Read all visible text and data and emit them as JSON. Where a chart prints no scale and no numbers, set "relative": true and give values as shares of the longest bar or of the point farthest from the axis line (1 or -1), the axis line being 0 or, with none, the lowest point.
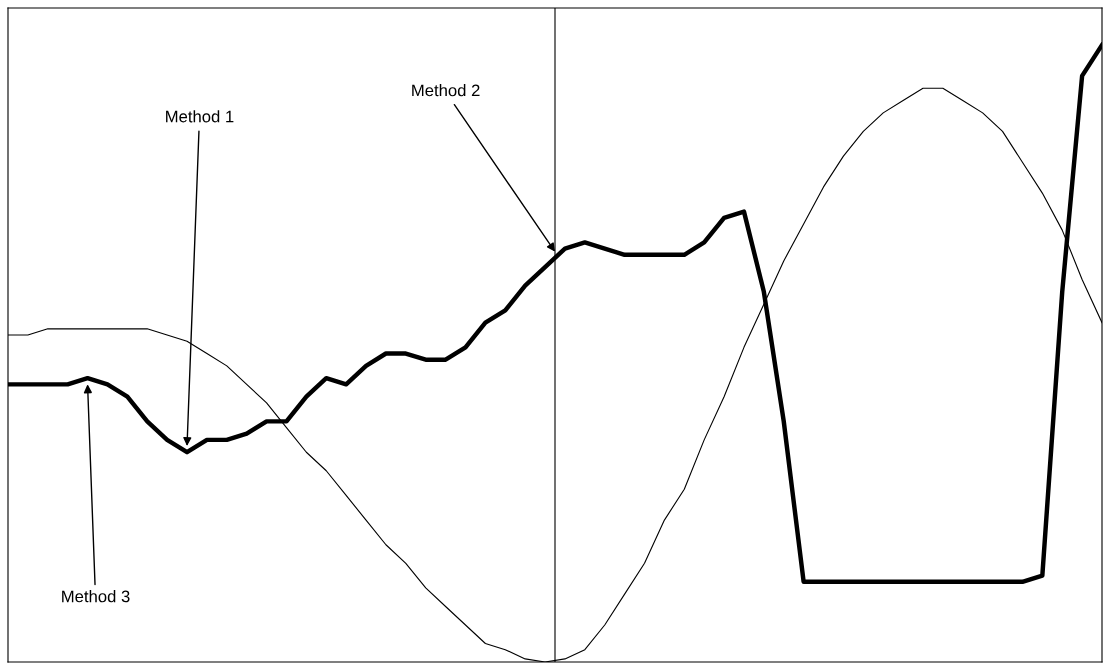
{
  "chart_data": {
    "type": "line",
    "relative": true,
    "categories": [
      null,
      null,
      null,
      null,
      null,
      null,
      null,
      null,
      null,
      null,
      null,
      null,
      null,
      null,
      null,
      null,
      null,
      null,
      null,
      null,
      null,
      null,
      null,
      null,
      null,
      null,
      null,
      null,
      null,
      null,
      null,
      null,
      null,
      null,
      null,
      null,
      null,
      null,
      null,
      null,
      null,
      null,
      null,
      null,
      null,
      null,
      null,
      null,
      null,
      null,
      null,
      null,
      null,
      null,
      null,
      null
    ],
    "series": [
      {
        "color": "#000000",
        "values": [
          0.45,
          0.45,
          0.45,
          0.45,
          0.46,
          0.45,
          0.43,
          0.39,
          0.36,
          0.34,
          0.36,
          0.36,
          0.37,
          0.39,
          0.39,
          0.43,
          0.46,
          0.45,
          0.48,
          0.5,
          0.5,
          0.49,
          0.49,
          0.51,
          0.55,
          0.57,
          0.61,
          0.64,
          0.67,
          0.68,
          0.67,
          0.66,
          0.66,
          0.66,
          0.66,
          0.68,
          0.72,
          0.73,
          0.6,
          0.39,
          0.13,
          0.13,
          0.13,
          0.13,
          0.13,
          0.13,
          0.13,
          0.13,
          0.13,
          0.13,
          0.13,
          0.13,
          0.14,
          0.6,
          0.95,
          1
        ]
      },
      {
        "color": "#000000",
        "values": [
          0.53,
          0.53,
          0.54,
          0.54,
          0.54,
          0.54,
          0.54,
          0.54,
          0.53,
          0.52,
          0.5,
          0.48,
          0.45,
          0.42,
          0.38,
          0.34,
          0.31,
          0.27,
          0.23,
          0.19,
          0.16,
          0.12,
          0.09,
          0.06,
          0.03,
          0.02,
          0.005,
          0,
          0.005,
          0.02,
          0.06,
          0.11,
          0.16,
          0.23,
          0.28,
          0.36,
          0.43,
          0.51,
          0.58,
          0.65,
          0.71,
          0.77,
          0.82,
          0.86,
          0.89,
          0.91,
          0.93,
          0.93,
          0.91,
          0.89,
          0.86,
          0.81,
          0.76,
          0.7,
          0.62,
          0.55
        ]
      }
    ],
    "annotations": [
      "Method 1",
      "Method 2",
      "Method 3"
    ],
    "legend": false,
    "marker": "none",
    "line_style": "solid"
  }
}
